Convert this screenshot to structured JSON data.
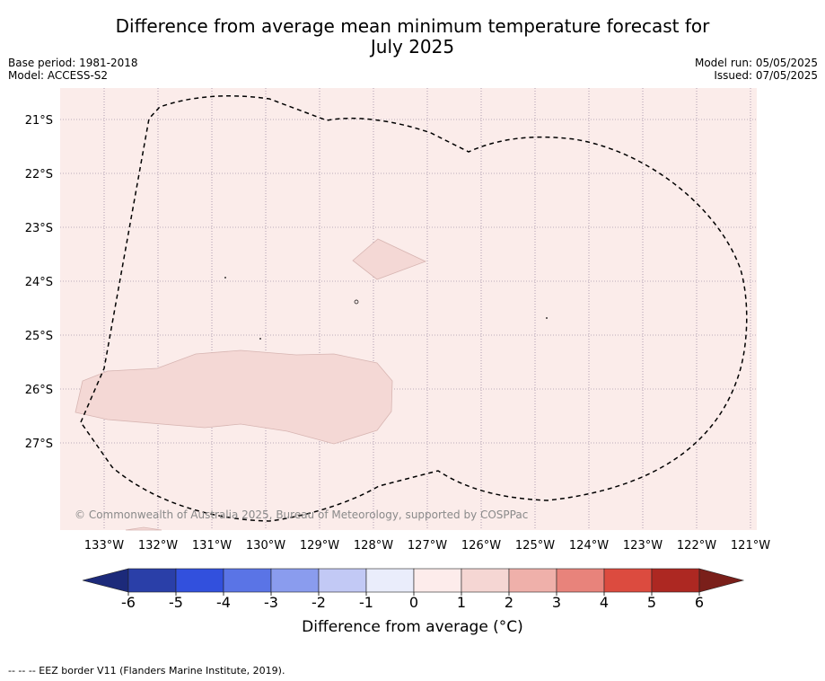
{
  "title_line1": "Difference from average mean minimum temperature forecast for",
  "title_line2": "July 2025",
  "base_period": "Base period: 1981-2018",
  "model": "Model: ACCESS-S2",
  "model_run": "Model run: 05/05/2025",
  "issued": "Issued: 07/05/2025",
  "copyright": "© Commonwealth of Australia 2025, Bureau of Meteorology, supported by COSPPac",
  "lat_labels": [
    "21°S",
    "22°S",
    "23°S",
    "24°S",
    "25°S",
    "26°S",
    "27°S"
  ],
  "lon_labels": [
    "133°W",
    "132°W",
    "131°W",
    "130°W",
    "129°W",
    "128°W",
    "127°W",
    "126°W",
    "125°W",
    "124°W",
    "123°W",
    "122°W",
    "121°W"
  ],
  "colorbar": {
    "ticks": [
      "-6",
      "-5",
      "-4",
      "-3",
      "-2",
      "-1",
      "0",
      "1",
      "2",
      "3",
      "4",
      "5",
      "6"
    ],
    "colors": [
      "#2a3fa8",
      "#3250dd",
      "#5a74e6",
      "#8a9cee",
      "#c2c9f5",
      "#eaedfb",
      "#fdeceb",
      "#f5d6d3",
      "#efb0aa",
      "#e8837b",
      "#dc4b3f",
      "#ad2822"
    ],
    "under_color": "#1c2a7a",
    "over_color": "#7a1f1a",
    "label": "Difference from average (°C)"
  },
  "background_color": "#fbecea",
  "anomaly_color": "#f4d8d5",
  "footnote": "--  --  -- EEZ border V11 (Flanders Marine Institute, 2019)."
}
